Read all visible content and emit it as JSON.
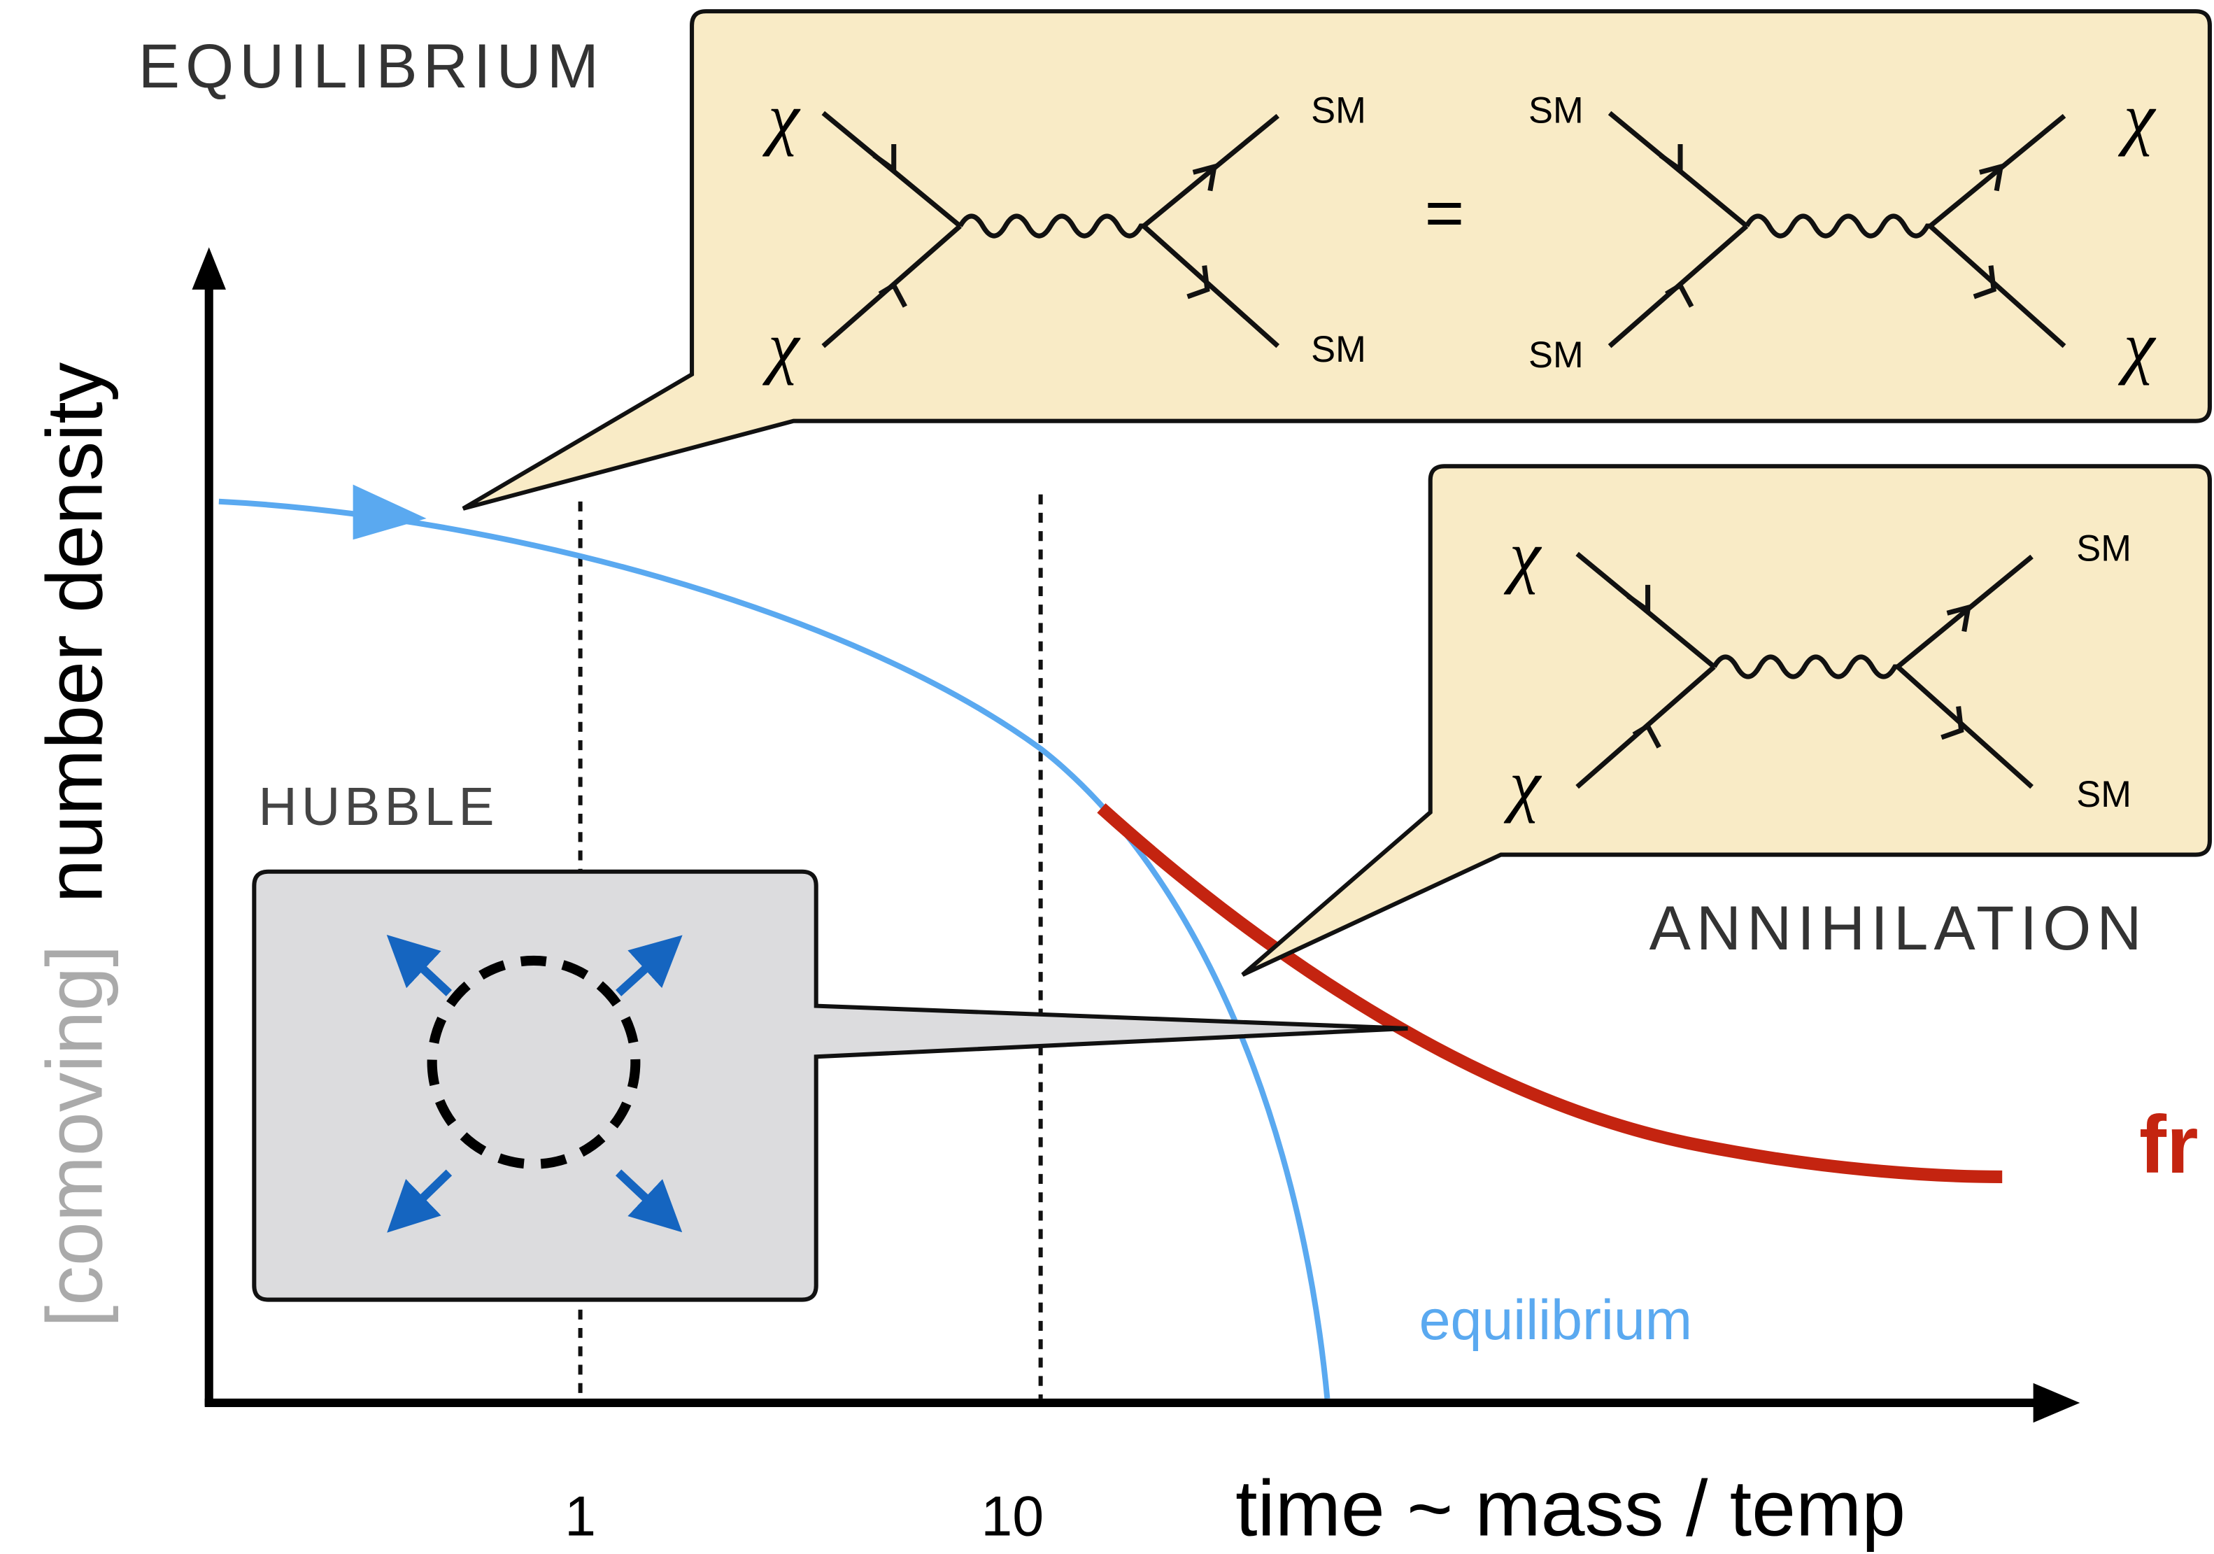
{
  "labels": {
    "equilibrium_phase": "EQUILIBRIUM",
    "hubble": "HUBBLE",
    "annihilation": "ANNIHILATION",
    "freeze": "fr",
    "equilibrium_curve": "equilibrium"
  },
  "axes": {
    "x_label": "time ~ mass / temp",
    "x_ticks": [
      "1",
      "10"
    ],
    "y_label_prefix": "[comoving]",
    "y_label": "number density"
  },
  "feynman": {
    "particle": "χ",
    "standard_model": "SM",
    "equals": "="
  }
}
